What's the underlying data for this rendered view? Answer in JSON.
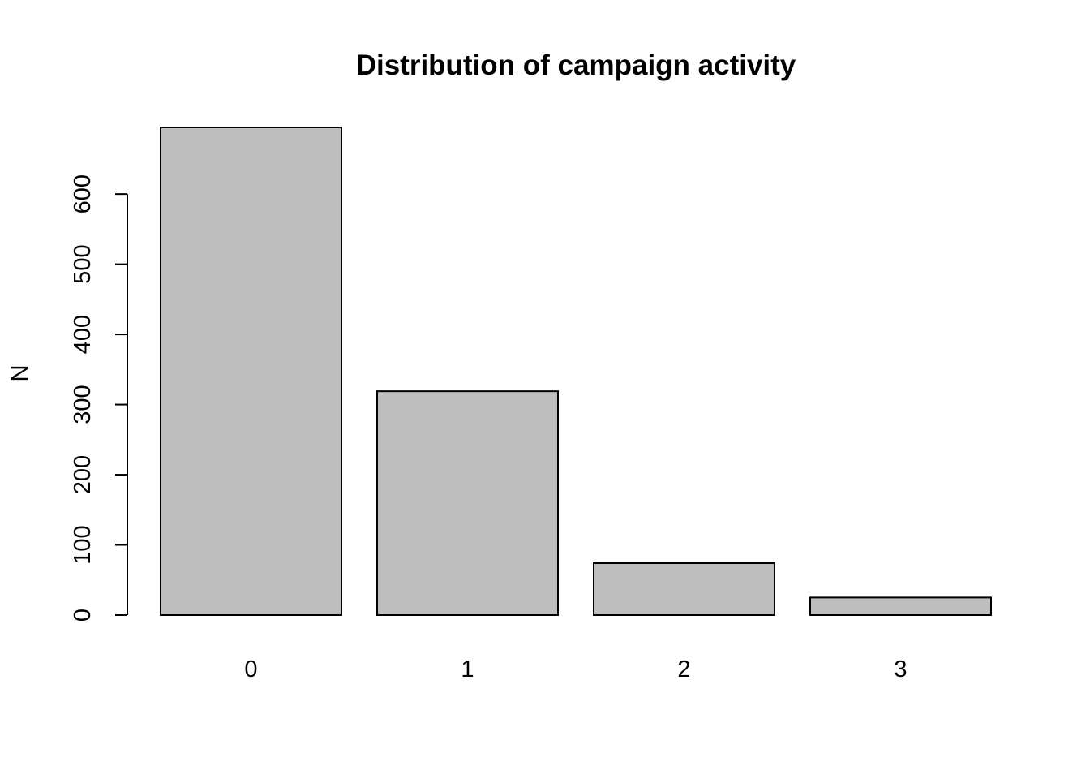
{
  "chart_data": {
    "type": "bar",
    "title": "Distribution of campaign activity",
    "xlabel": "",
    "ylabel": "N",
    "categories": [
      "0",
      "1",
      "2",
      "3"
    ],
    "values": [
      695,
      319,
      74,
      25
    ],
    "ylim": [
      0,
      695
    ],
    "yticks": [
      0,
      100,
      200,
      300,
      400,
      500,
      600
    ],
    "ytick_labels": [
      "0",
      "100",
      "200",
      "300",
      "400",
      "500",
      "600"
    ],
    "grid": false,
    "legend": "none",
    "bar_color": "#bebebe",
    "border_color": "#000000"
  }
}
